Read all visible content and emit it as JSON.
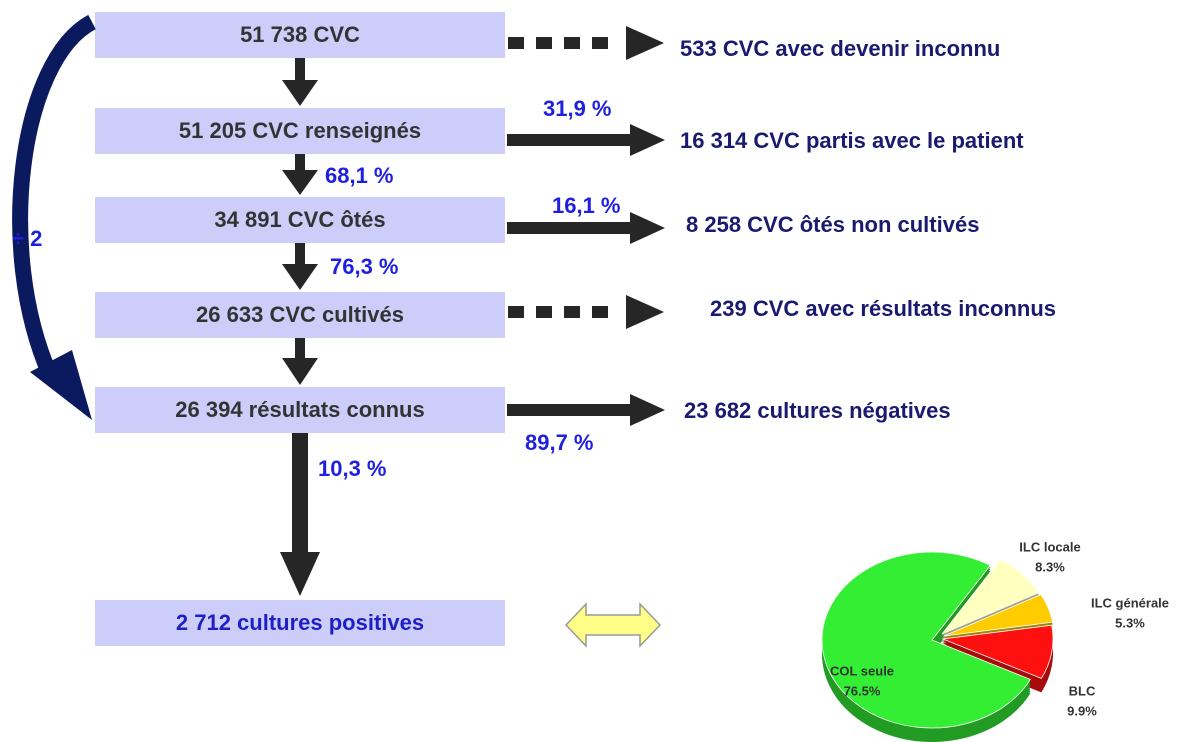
{
  "boxes": [
    {
      "label": "51 738 CVC"
    },
    {
      "label": "51 205 CVC renseignés"
    },
    {
      "label": "34 891 CVC ôtés"
    },
    {
      "label": "26 633 CVC cultivés"
    },
    {
      "label": "26 394 résultats connus"
    },
    {
      "label": "2 712 cultures positives"
    }
  ],
  "side_outcomes": [
    {
      "label": "533 CVC avec devenir inconnu"
    },
    {
      "label": "16 314 CVC partis avec le patient"
    },
    {
      "label": "8 258 CVC ôtés non cultivés"
    },
    {
      "label": "239 CVC avec résultats inconnus"
    },
    {
      "label": "23 682 cultures négatives"
    }
  ],
  "percentages": {
    "partis": "31,9 %",
    "renseignes_otes": "68,1 %",
    "non_cultives": "16,1 %",
    "otes_cultives": "76,3 %",
    "negatives": "89,7 %",
    "positives": "10,3 %"
  },
  "divide_label": "÷ 2",
  "pie": {
    "type": "pie",
    "labels": [
      "ILC locale",
      "ILC générale",
      "BLC",
      "COL seule"
    ],
    "values": [
      8.3,
      5.3,
      9.9,
      76.5
    ],
    "value_labels": [
      "8.3%",
      "5.3%",
      "9.9%",
      "76.5%"
    ],
    "colors": [
      "#ffffc0",
      "#ffcc00",
      "#ff1010",
      "#33ee33"
    ]
  }
}
